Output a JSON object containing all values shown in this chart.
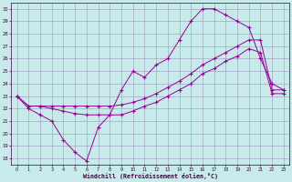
{
  "xlabel": "Windchill (Refroidissement éolien,°C)",
  "xlim": [
    -0.5,
    23.5
  ],
  "ylim": [
    17.5,
    30.5
  ],
  "xticks": [
    0,
    1,
    2,
    3,
    4,
    5,
    6,
    7,
    8,
    9,
    10,
    11,
    12,
    13,
    14,
    15,
    16,
    17,
    18,
    19,
    20,
    21,
    22,
    23
  ],
  "yticks": [
    18,
    19,
    20,
    21,
    22,
    23,
    24,
    25,
    26,
    27,
    28,
    29,
    30
  ],
  "bg_color": "#c8eaea",
  "grid_color": "#9999bb",
  "line_color": "#990099",
  "line1_y": [
    23,
    22,
    21.5,
    21,
    19.5,
    18.5,
    17.8,
    20.5,
    21.5,
    23.5,
    25,
    24.5,
    25.5,
    26,
    27.5,
    29,
    30,
    30,
    29.5,
    29,
    28.5,
    26,
    24,
    23.5
  ],
  "line2_y": [
    23,
    22.2,
    22.2,
    22.2,
    22.2,
    22.2,
    22.2,
    22.2,
    22.2,
    22.3,
    22.5,
    22.8,
    23.2,
    23.7,
    24.2,
    24.8,
    25.5,
    26.0,
    26.5,
    27.0,
    27.5,
    27.5,
    23.5,
    23.5
  ],
  "line3_y": [
    23,
    22.2,
    22.2,
    22.0,
    21.8,
    21.6,
    21.5,
    21.5,
    21.5,
    21.5,
    21.8,
    22.2,
    22.5,
    23.0,
    23.5,
    24.0,
    24.8,
    25.2,
    25.8,
    26.2,
    26.8,
    26.5,
    23.2,
    23.2
  ]
}
